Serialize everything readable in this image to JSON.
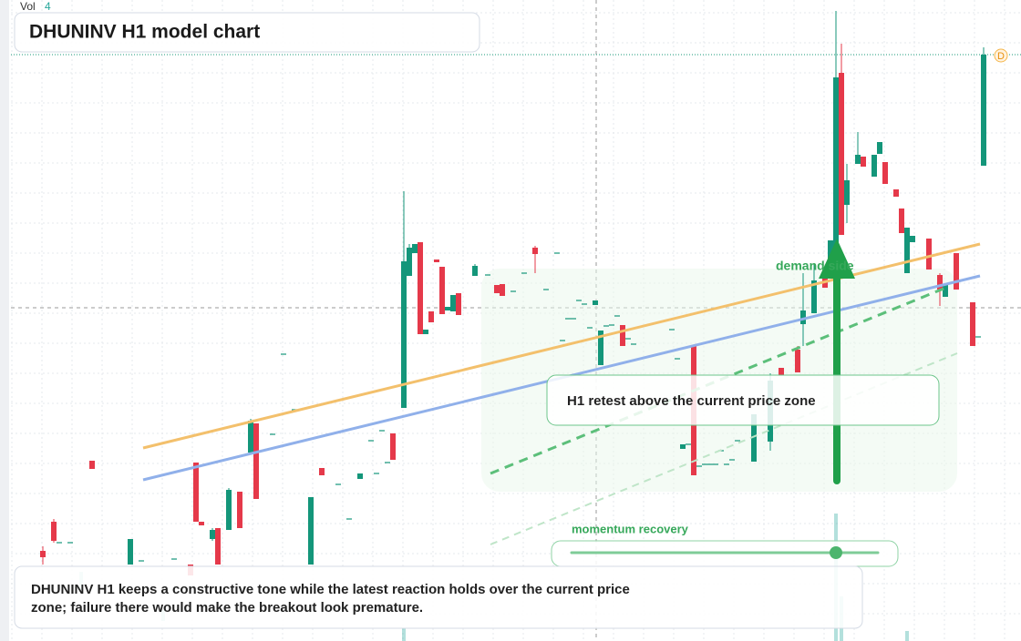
{
  "header": {
    "vol_label": "Vol",
    "vol_value": 4,
    "title": "DHUNINV H1 model chart"
  },
  "marker": "D",
  "annotations": {
    "zone": "demand side",
    "callout": "H1 retest above the current price zone",
    "momentum": "momentum recovery"
  },
  "summary": {
    "line1": "DHUNINV H1 keeps a constructive tone while the latest reaction holds over the current price",
    "line2": "zone; failure there would make the breakout look premature."
  }
}
